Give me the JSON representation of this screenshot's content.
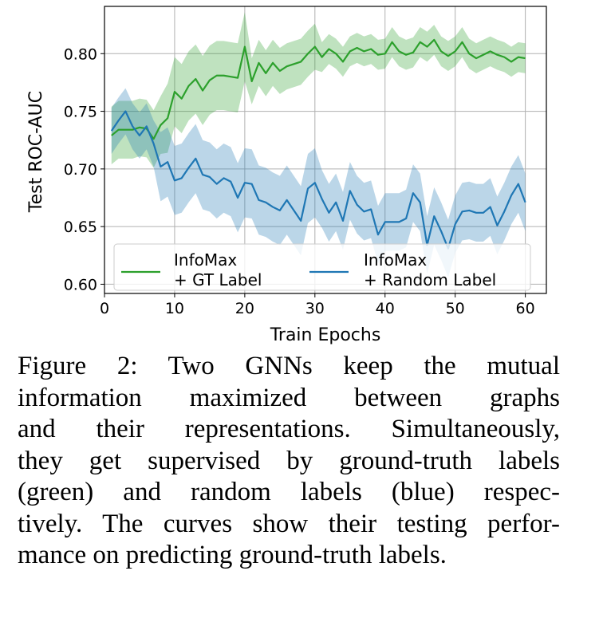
{
  "chart_data": {
    "type": "line",
    "xlabel": "Train Epochs",
    "ylabel": "Test ROC-AUC",
    "xlim": [
      0,
      63
    ],
    "ylim": [
      0.592,
      0.841
    ],
    "xticks": [
      0,
      10,
      20,
      30,
      40,
      50,
      60
    ],
    "yticks": [
      "0.60",
      "0.65",
      "0.70",
      "0.75",
      "0.80"
    ],
    "grid": true,
    "legend_placement": "bottom",
    "x": [
      1,
      2,
      3,
      4,
      5,
      6,
      7,
      8,
      9,
      10,
      11,
      12,
      13,
      14,
      15,
      16,
      17,
      18,
      19,
      20,
      21,
      22,
      23,
      24,
      25,
      26,
      27,
      28,
      29,
      30,
      31,
      32,
      33,
      34,
      35,
      36,
      37,
      38,
      39,
      40,
      41,
      42,
      43,
      44,
      45,
      46,
      47,
      48,
      49,
      50,
      51,
      52,
      53,
      54,
      55,
      56,
      57,
      58,
      59,
      60
    ],
    "series": [
      {
        "name": "InfoMax\n+ GT Label",
        "legend_lines": [
          "InfoMax",
          "+ GT Label"
        ],
        "color": "#2ca02c",
        "values": [
          0.729,
          0.734,
          0.734,
          0.734,
          0.736,
          0.735,
          0.726,
          0.738,
          0.744,
          0.767,
          0.761,
          0.772,
          0.778,
          0.768,
          0.777,
          0.781,
          0.781,
          0.78,
          0.779,
          0.806,
          0.776,
          0.792,
          0.783,
          0.792,
          0.785,
          0.789,
          0.791,
          0.793,
          0.8,
          0.806,
          0.797,
          0.804,
          0.8,
          0.793,
          0.802,
          0.805,
          0.802,
          0.804,
          0.799,
          0.8,
          0.81,
          0.802,
          0.799,
          0.801,
          0.81,
          0.806,
          0.812,
          0.802,
          0.798,
          0.802,
          0.81,
          0.8,
          0.796,
          0.799,
          0.802,
          0.799,
          0.797,
          0.793,
          0.797,
          0.796
        ],
        "band_halfwidth": [
          0.025,
          0.025,
          0.025,
          0.025,
          0.025,
          0.025,
          0.025,
          0.025,
          0.03,
          0.03,
          0.03,
          0.03,
          0.03,
          0.03,
          0.03,
          0.03,
          0.03,
          0.03,
          0.03,
          0.03,
          0.02,
          0.02,
          0.02,
          0.02,
          0.02,
          0.02,
          0.02,
          0.02,
          0.02,
          0.02,
          0.013,
          0.013,
          0.013,
          0.013,
          0.013,
          0.013,
          0.013,
          0.013,
          0.013,
          0.013,
          0.013,
          0.013,
          0.013,
          0.013,
          0.013,
          0.013,
          0.013,
          0.013,
          0.013,
          0.013,
          0.013,
          0.013,
          0.013,
          0.013,
          0.013,
          0.013,
          0.013,
          0.013,
          0.013,
          0.013
        ]
      },
      {
        "name": "InfoMax\n+ Random Label",
        "legend_lines": [
          "InfoMax",
          "+ Random Label"
        ],
        "color": "#1f77b4",
        "values": [
          0.733,
          0.742,
          0.75,
          0.737,
          0.729,
          0.737,
          0.722,
          0.702,
          0.706,
          0.69,
          0.692,
          0.701,
          0.709,
          0.695,
          0.693,
          0.687,
          0.692,
          0.689,
          0.675,
          0.688,
          0.687,
          0.673,
          0.671,
          0.667,
          0.664,
          0.673,
          0.664,
          0.655,
          0.683,
          0.688,
          0.674,
          0.662,
          0.671,
          0.655,
          0.681,
          0.669,
          0.663,
          0.665,
          0.643,
          0.654,
          0.654,
          0.654,
          0.657,
          0.679,
          0.671,
          0.634,
          0.659,
          0.646,
          0.631,
          0.652,
          0.663,
          0.664,
          0.662,
          0.662,
          0.667,
          0.651,
          0.663,
          0.677,
          0.687,
          0.671
        ],
        "band_halfwidth": [
          0.02,
          0.02,
          0.02,
          0.02,
          0.02,
          0.02,
          0.02,
          0.03,
          0.03,
          0.03,
          0.03,
          0.03,
          0.03,
          0.03,
          0.03,
          0.03,
          0.03,
          0.03,
          0.03,
          0.03,
          0.03,
          0.03,
          0.03,
          0.03,
          0.03,
          0.03,
          0.03,
          0.03,
          0.03,
          0.03,
          0.025,
          0.025,
          0.025,
          0.025,
          0.025,
          0.025,
          0.025,
          0.025,
          0.025,
          0.025,
          0.025,
          0.025,
          0.025,
          0.025,
          0.025,
          0.025,
          0.025,
          0.025,
          0.025,
          0.025,
          0.025,
          0.025,
          0.025,
          0.025,
          0.025,
          0.025,
          0.025,
          0.025,
          0.025,
          0.025
        ]
      }
    ]
  },
  "caption": {
    "label": "Figure 2:",
    "lines": [
      "Figure 2:  Two GNNs keep the mutual",
      "information maximized between graphs",
      "and their representations. Simultaneously,",
      "they get supervised by ground-truth labels",
      "(green) and random labels (blue) respec-",
      "tively. The curves show their testing perfor-",
      "mance on predicting ground-truth labels."
    ]
  }
}
